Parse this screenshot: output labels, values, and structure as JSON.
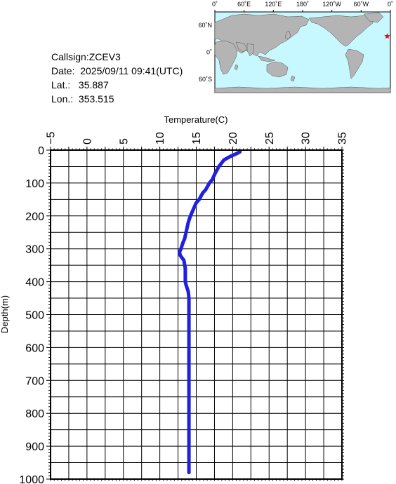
{
  "info": {
    "callsign_label": "Callsign:",
    "callsign": "ZCEV3",
    "date_label": "Date:",
    "date": "2025/09/11 09:41(UTC)",
    "lat_label": "Lat.:",
    "lat": "35.887",
    "lon_label": "Lon.:",
    "lon": "353.515"
  },
  "map": {
    "top_labels": [
      "0˚",
      "60˚E",
      "120˚E",
      "180˚",
      "120˚W",
      "60˚W",
      "0˚"
    ],
    "left_labels": [
      "60˚N",
      "0˚",
      "60˚S"
    ],
    "ocean_color": "#c8f8ff",
    "land_color": "#b4b4b4",
    "marker": {
      "lon": 353.515,
      "lat": 35.887,
      "color": "#ff0000",
      "shape": "star"
    }
  },
  "chart_data": {
    "type": "line",
    "title": "",
    "xlabel": "Temperature(C)",
    "ylabel": "Depth(m)",
    "xlim": [
      -5,
      35
    ],
    "ylim": [
      0,
      1000
    ],
    "y_inverted": true,
    "x_axis_position": "top",
    "x_ticks": [
      -5,
      0,
      5,
      10,
      15,
      20,
      25,
      30,
      35
    ],
    "y_ticks": [
      0,
      100,
      200,
      300,
      400,
      500,
      600,
      700,
      800,
      900,
      1000
    ],
    "grid": true,
    "line_color": "#2020e0",
    "series": [
      {
        "x": [
          21.0,
          20.6,
          19.6,
          18.8,
          18.1,
          17.6,
          17.2,
          16.8,
          16.3,
          15.9,
          15.4,
          15.0,
          14.6,
          14.2,
          13.9,
          13.6,
          13.4,
          13.2,
          12.9,
          12.7,
          12.8,
          13.3,
          13.5,
          13.5,
          13.6,
          13.9,
          14.0,
          14.0,
          14.0,
          14.0,
          14.0,
          14.0,
          14.0,
          14.0
        ],
        "y": [
          5,
          10,
          20,
          30,
          50,
          70,
          90,
          100,
          120,
          130,
          150,
          160,
          180,
          200,
          220,
          250,
          270,
          280,
          300,
          310,
          320,
          335,
          360,
          400,
          410,
          430,
          450,
          500,
          600,
          700,
          800,
          900,
          950,
          980
        ]
      }
    ]
  }
}
